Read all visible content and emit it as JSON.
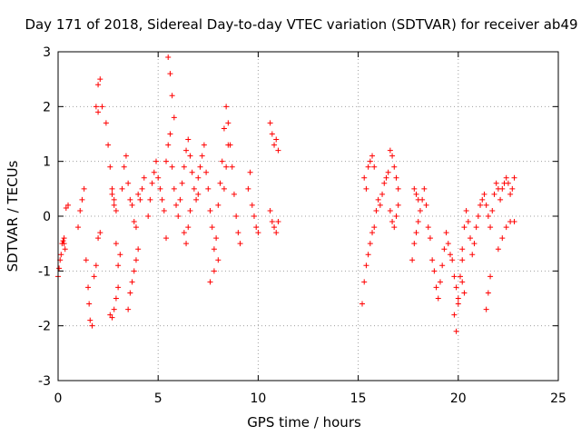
{
  "chart_data": {
    "type": "scatter",
    "title": "Day 171 of 2018, Sidereal Day-to-day VTEC variation (SDTVAR) for receiver ab49",
    "xlabel": "GPS time / hours",
    "ylabel": "SDTVAR / TECUs",
    "xlim": [
      0,
      25
    ],
    "ylim": [
      -3,
      3
    ],
    "xticks": [
      "0",
      "5",
      "10",
      "15",
      "20",
      "25"
    ],
    "yticks": [
      "-3",
      "-2",
      "-1",
      "0",
      "1",
      "2",
      "3"
    ],
    "grid": true,
    "marker": "plus",
    "color": "#ff0000",
    "series": [
      {
        "name": "SDTVAR",
        "x": [
          0.0,
          0.1,
          0.2,
          0.3,
          0.35,
          0.05,
          0.15,
          0.25,
          0.4,
          0.5,
          0.3,
          1.0,
          1.1,
          1.2,
          1.3,
          1.4,
          1.5,
          1.55,
          1.6,
          1.7,
          1.8,
          1.9,
          2.0,
          2.0,
          1.9,
          2.0,
          2.1,
          2.2,
          2.1,
          2.4,
          2.5,
          2.6,
          2.7,
          2.8,
          2.9,
          3.0,
          2.6,
          2.7,
          2.8,
          2.9,
          3.0,
          3.1,
          2.7,
          2.8,
          2.9,
          3.2,
          3.3,
          3.4,
          3.5,
          3.6,
          3.7,
          3.8,
          3.9,
          4.0,
          4.1,
          4.2,
          4.3,
          3.5,
          3.6,
          3.7,
          3.8,
          3.9,
          4.0,
          4.5,
          4.6,
          4.7,
          4.8,
          4.9,
          5.0,
          5.1,
          5.2,
          5.3,
          5.4,
          5.5,
          5.6,
          5.7,
          5.8,
          5.4,
          5.5,
          5.6,
          5.7,
          5.8,
          5.9,
          6.0,
          6.1,
          6.2,
          6.3,
          6.4,
          6.5,
          6.6,
          6.7,
          6.8,
          6.9,
          7.0,
          6.3,
          6.4,
          6.5,
          6.6,
          7.0,
          7.1,
          7.2,
          7.3,
          7.4,
          7.5,
          7.6,
          7.7,
          7.8,
          7.9,
          8.0,
          8.1,
          8.2,
          8.3,
          8.4,
          8.5,
          8.6,
          8.7,
          8.8,
          8.9,
          9.0,
          9.1,
          8.3,
          8.4,
          8.5,
          7.6,
          7.8,
          8.0,
          9.5,
          9.6,
          9.7,
          9.8,
          9.9,
          10.0,
          10.6,
          10.7,
          10.8,
          10.9,
          11.0,
          10.6,
          10.7,
          10.8,
          10.9,
          11.0,
          15.2,
          15.3,
          15.4,
          15.5,
          15.6,
          15.7,
          15.8,
          15.9,
          16.0,
          15.5,
          15.6,
          15.7,
          15.8,
          15.3,
          15.4,
          16.1,
          16.2,
          16.3,
          16.4,
          16.5,
          16.6,
          16.7,
          16.8,
          16.9,
          17.0,
          16.6,
          16.7,
          16.8,
          16.9,
          17.0,
          17.7,
          17.8,
          17.9,
          18.0,
          18.1,
          18.2,
          18.3,
          18.4,
          18.5,
          18.6,
          17.8,
          17.9,
          18.0,
          18.7,
          18.8,
          18.9,
          19.0,
          19.1,
          19.2,
          19.3,
          19.4,
          19.5,
          19.6,
          19.7,
          19.8,
          19.9,
          20.0,
          20.1,
          20.2,
          19.8,
          19.9,
          20.0,
          20.2,
          20.3,
          20.4,
          20.5,
          20.6,
          20.7,
          20.8,
          20.9,
          21.0,
          21.1,
          20.2,
          20.3,
          21.2,
          21.3,
          21.4,
          21.5,
          21.6,
          21.7,
          21.8,
          21.9,
          22.0,
          22.1,
          22.2,
          22.3,
          22.4,
          22.5,
          22.6,
          22.7,
          22.8,
          21.4,
          21.5,
          21.6,
          22.0,
          22.2,
          22.4,
          22.6,
          22.8
        ],
        "y": [
          -1.1,
          -0.8,
          -0.5,
          -0.4,
          -0.6,
          -0.95,
          -0.7,
          -0.45,
          0.15,
          0.2,
          -0.5,
          -0.2,
          0.1,
          0.3,
          0.5,
          -0.8,
          -1.3,
          -1.6,
          -1.9,
          -2.0,
          -1.1,
          -0.9,
          -0.4,
          1.9,
          2.0,
          2.4,
          2.5,
          2.0,
          -0.3,
          1.7,
          1.3,
          0.9,
          0.5,
          0.3,
          -0.5,
          -0.9,
          -1.8,
          -1.85,
          -1.7,
          -1.5,
          -1.3,
          -0.7,
          0.4,
          0.2,
          0.1,
          0.5,
          0.9,
          1.1,
          0.6,
          0.3,
          0.2,
          -0.1,
          -0.2,
          0.4,
          0.3,
          0.5,
          0.7,
          -1.7,
          -1.4,
          -1.2,
          -1.0,
          -0.8,
          -0.6,
          0.0,
          0.3,
          0.6,
          0.8,
          1.0,
          0.7,
          0.5,
          0.3,
          0.1,
          -0.4,
          2.9,
          2.6,
          2.2,
          1.8,
          1.0,
          1.3,
          1.5,
          0.9,
          0.5,
          0.2,
          0.0,
          0.3,
          0.6,
          0.9,
          1.2,
          1.4,
          1.1,
          0.8,
          0.5,
          0.3,
          0.4,
          -0.3,
          -0.5,
          -0.2,
          0.1,
          0.7,
          0.9,
          1.1,
          1.3,
          0.8,
          0.5,
          0.1,
          -0.2,
          -0.6,
          -0.4,
          0.2,
          0.6,
          1.0,
          1.6,
          2.0,
          1.7,
          1.3,
          0.9,
          0.4,
          0.0,
          -0.3,
          -0.5,
          0.5,
          0.9,
          1.3,
          -1.2,
          -1.0,
          -0.8,
          0.5,
          0.8,
          0.2,
          0.0,
          -0.2,
          -0.3,
          1.7,
          1.5,
          1.3,
          1.4,
          1.2,
          0.1,
          -0.1,
          -0.2,
          -0.3,
          -0.1,
          -1.6,
          -1.2,
          -0.9,
          -0.7,
          -0.5,
          -0.3,
          -0.2,
          0.1,
          0.3,
          0.9,
          1.0,
          1.1,
          0.9,
          0.7,
          0.5,
          0.2,
          0.4,
          0.6,
          0.7,
          0.8,
          1.2,
          1.1,
          0.9,
          0.7,
          0.5,
          0.1,
          -0.1,
          -0.2,
          0.0,
          0.2,
          -0.8,
          -0.5,
          -0.3,
          -0.1,
          0.1,
          0.3,
          0.5,
          0.2,
          -0.2,
          -0.4,
          0.5,
          0.4,
          0.3,
          -0.8,
          -1.0,
          -1.3,
          -1.5,
          -1.2,
          -0.9,
          -0.6,
          -0.3,
          -0.5,
          -0.7,
          -0.8,
          -1.1,
          -1.3,
          -1.5,
          -1.1,
          -0.8,
          -1.8,
          -2.1,
          -1.6,
          -0.6,
          -0.2,
          0.1,
          -0.1,
          -0.4,
          -0.7,
          -0.5,
          -0.2,
          0.0,
          0.2,
          -1.2,
          -1.4,
          0.3,
          0.4,
          0.2,
          0.0,
          -0.2,
          0.1,
          0.4,
          0.6,
          0.5,
          0.3,
          0.5,
          0.6,
          0.7,
          0.6,
          0.4,
          0.5,
          0.7,
          -1.7,
          -1.4,
          -1.1,
          -0.6,
          -0.4,
          -0.2,
          -0.1,
          -0.1
        ]
      }
    ]
  }
}
